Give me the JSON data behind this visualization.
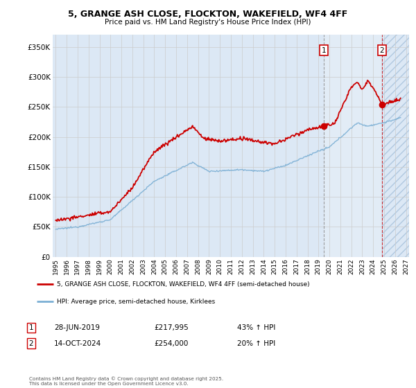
{
  "title_line1": "5, GRANGE ASH CLOSE, FLOCKTON, WAKEFIELD, WF4 4FF",
  "title_line2": "Price paid vs. HM Land Registry's House Price Index (HPI)",
  "ylim": [
    0,
    370000
  ],
  "yticks": [
    0,
    50000,
    100000,
    150000,
    200000,
    250000,
    300000,
    350000
  ],
  "ytick_labels": [
    "£0",
    "£50K",
    "£100K",
    "£150K",
    "£200K",
    "£250K",
    "£300K",
    "£350K"
  ],
  "xlim_start": 1994.7,
  "xlim_end": 2027.3,
  "background_color": "#ffffff",
  "grid_color": "#cccccc",
  "plot_bg_color": "#dce8f5",
  "hpi_line_color": "#7bafd4",
  "price_line_color": "#cc0000",
  "marker1_x": 2019.49,
  "marker1_y": 217995,
  "marker2_x": 2024.79,
  "marker2_y": 254000,
  "marker1_label": "1",
  "marker2_label": "2",
  "legend_line1": "5, GRANGE ASH CLOSE, FLOCKTON, WAKEFIELD, WF4 4FF (semi-detached house)",
  "legend_line2": "HPI: Average price, semi-detached house, Kirklees",
  "footer": "Contains HM Land Registry data © Crown copyright and database right 2025.\nThis data is licensed under the Open Government Licence v3.0.",
  "shade_start_x": 2024.79,
  "shade_end_x": 2027.3
}
